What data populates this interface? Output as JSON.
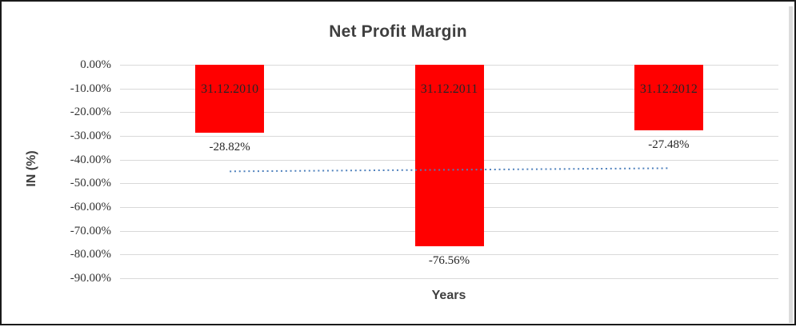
{
  "chart_data": {
    "type": "bar",
    "title": "Net Profit Margin",
    "xlabel": "Years",
    "ylabel": "IN (%)",
    "categories": [
      "31.12.2010",
      "31.12.2011",
      "31.12.2012"
    ],
    "values": [
      -28.82,
      -76.56,
      -27.48
    ],
    "data_labels": [
      "-28.82%",
      "-76.56%",
      "-27.48%"
    ],
    "ytick_labels": [
      "0.00%",
      "-10.00%",
      "-20.00%",
      "-30.00%",
      "-40.00%",
      "-50.00%",
      "-60.00%",
      "-70.00%",
      "-80.00%",
      "-90.00%"
    ],
    "ylim": [
      -90,
      0
    ],
    "grid": true,
    "legend": false,
    "bar_color": "#ff0000",
    "gridline_color": "#d9d9d9",
    "title_color": "#3f3f3f",
    "axis_title_color": "#3f3f3f",
    "tick_label_color": "#333333",
    "bar_label_color": "#262626",
    "trendline": {
      "type": "linear",
      "style": "dotted",
      "color": "#4f81bd",
      "y_start": -44.95,
      "y_end": -43.62
    }
  }
}
